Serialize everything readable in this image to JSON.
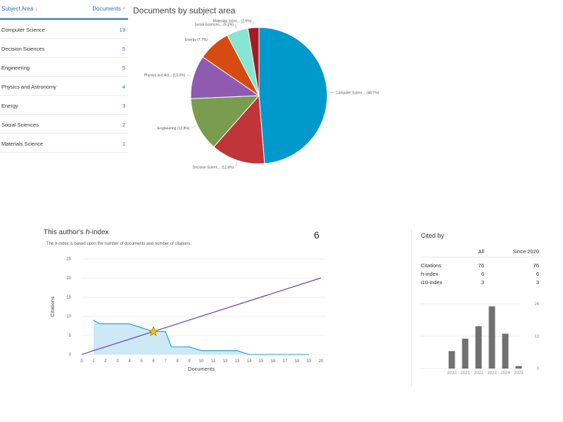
{
  "subject_table": {
    "header_left": "Subject Area",
    "header_right": "Documents",
    "rows": [
      {
        "name": "Computer Science",
        "count": "19"
      },
      {
        "name": "Decision Sciences",
        "count": "5"
      },
      {
        "name": "Engineering",
        "count": "5"
      },
      {
        "name": "Physics and Astronomy",
        "count": "4"
      },
      {
        "name": "Energy",
        "count": "3"
      },
      {
        "name": "Social Sciences",
        "count": "2"
      },
      {
        "name": "Materials Science",
        "count": "1"
      }
    ]
  },
  "pie": {
    "title": "Documents by subject area"
  },
  "hindex": {
    "title_prefix": "This author's ",
    "title_em": "h",
    "title_suffix": "-index",
    "desc_prefix": "The ",
    "desc_em": "h",
    "desc_suffix": "-index is based upon the number of documents and number of citations.",
    "value": "6"
  },
  "cited_by": {
    "title": "Cited by",
    "col_all": "All",
    "col_since": "Since 2020",
    "rows": [
      {
        "label": "Citations",
        "all": "76",
        "since": "76"
      },
      {
        "label": "h-index",
        "all": "6",
        "since": "6"
      },
      {
        "label": "i10-index",
        "all": "3",
        "since": "3"
      }
    ]
  },
  "chart_data": [
    {
      "type": "pie",
      "title": "Documents by subject area",
      "slices": [
        {
          "label": "Computer Scienc...",
          "pct_label": "(48.7%)",
          "value": 48.7,
          "color": "#0099cc"
        },
        {
          "label": "Decision Scienc...",
          "pct_label": "(12.8%)",
          "value": 12.8,
          "color": "#c0343a"
        },
        {
          "label": "Engineering",
          "pct_label": "(12.8%)",
          "value": 12.8,
          "color": "#7a9c4e"
        },
        {
          "label": "Physics and Ast...",
          "pct_label": "(10.3%)",
          "value": 10.3,
          "color": "#8e5bb0"
        },
        {
          "label": "Energy",
          "pct_label": "(7.7%)",
          "value": 7.7,
          "color": "#d64b12"
        },
        {
          "label": "Social Sciences...",
          "pct_label": "(5.1%)",
          "value": 5.1,
          "color": "#86e6d1"
        },
        {
          "label": "Materials Scien...",
          "pct_label": "(2.6%)",
          "value": 2.6,
          "color": "#a31c25"
        }
      ]
    },
    {
      "type": "area",
      "xlabel": "Documents",
      "ylabel": "Citations",
      "xlim": [
        0,
        20
      ],
      "ylim": [
        0,
        25
      ],
      "xticks": [
        0,
        1,
        2,
        3,
        4,
        5,
        6,
        7,
        8,
        9,
        10,
        11,
        12,
        13,
        14,
        15,
        16,
        17,
        18,
        19,
        20
      ],
      "yticks": [
        0,
        5,
        10,
        15,
        20,
        25
      ],
      "series": [
        {
          "color": "#1a9bcb",
          "fill": "#cde9f5",
          "points": [
            [
              1,
              9
            ],
            [
              1.5,
              8
            ],
            [
              2,
              8
            ],
            [
              3,
              8
            ],
            [
              4,
              8
            ],
            [
              5,
              7
            ],
            [
              6,
              6
            ],
            [
              7,
              6
            ],
            [
              7.5,
              2
            ],
            [
              8,
              2
            ],
            [
              9,
              2
            ],
            [
              10,
              1
            ],
            [
              11,
              1
            ],
            [
              12,
              1
            ],
            [
              13,
              1
            ],
            [
              14,
              0
            ],
            [
              15,
              0
            ],
            [
              16,
              0
            ],
            [
              17,
              0
            ],
            [
              18,
              0
            ],
            [
              19,
              0
            ]
          ]
        },
        {
          "color": "#5b2bb0",
          "points": [
            [
              0,
              0
            ],
            [
              20,
              20
            ]
          ]
        }
      ],
      "h_index_marker": {
        "x": 6,
        "y": 6,
        "color": "#f2c400"
      }
    },
    {
      "type": "bar",
      "categories": [
        "2020",
        "2021",
        "2022",
        "2023",
        "2024",
        "2025"
      ],
      "values": [
        7,
        12,
        17,
        25,
        14,
        1
      ],
      "yticks": [
        "26",
        "13",
        "0"
      ],
      "ylim": [
        0,
        26
      ],
      "color": "#707070"
    }
  ]
}
